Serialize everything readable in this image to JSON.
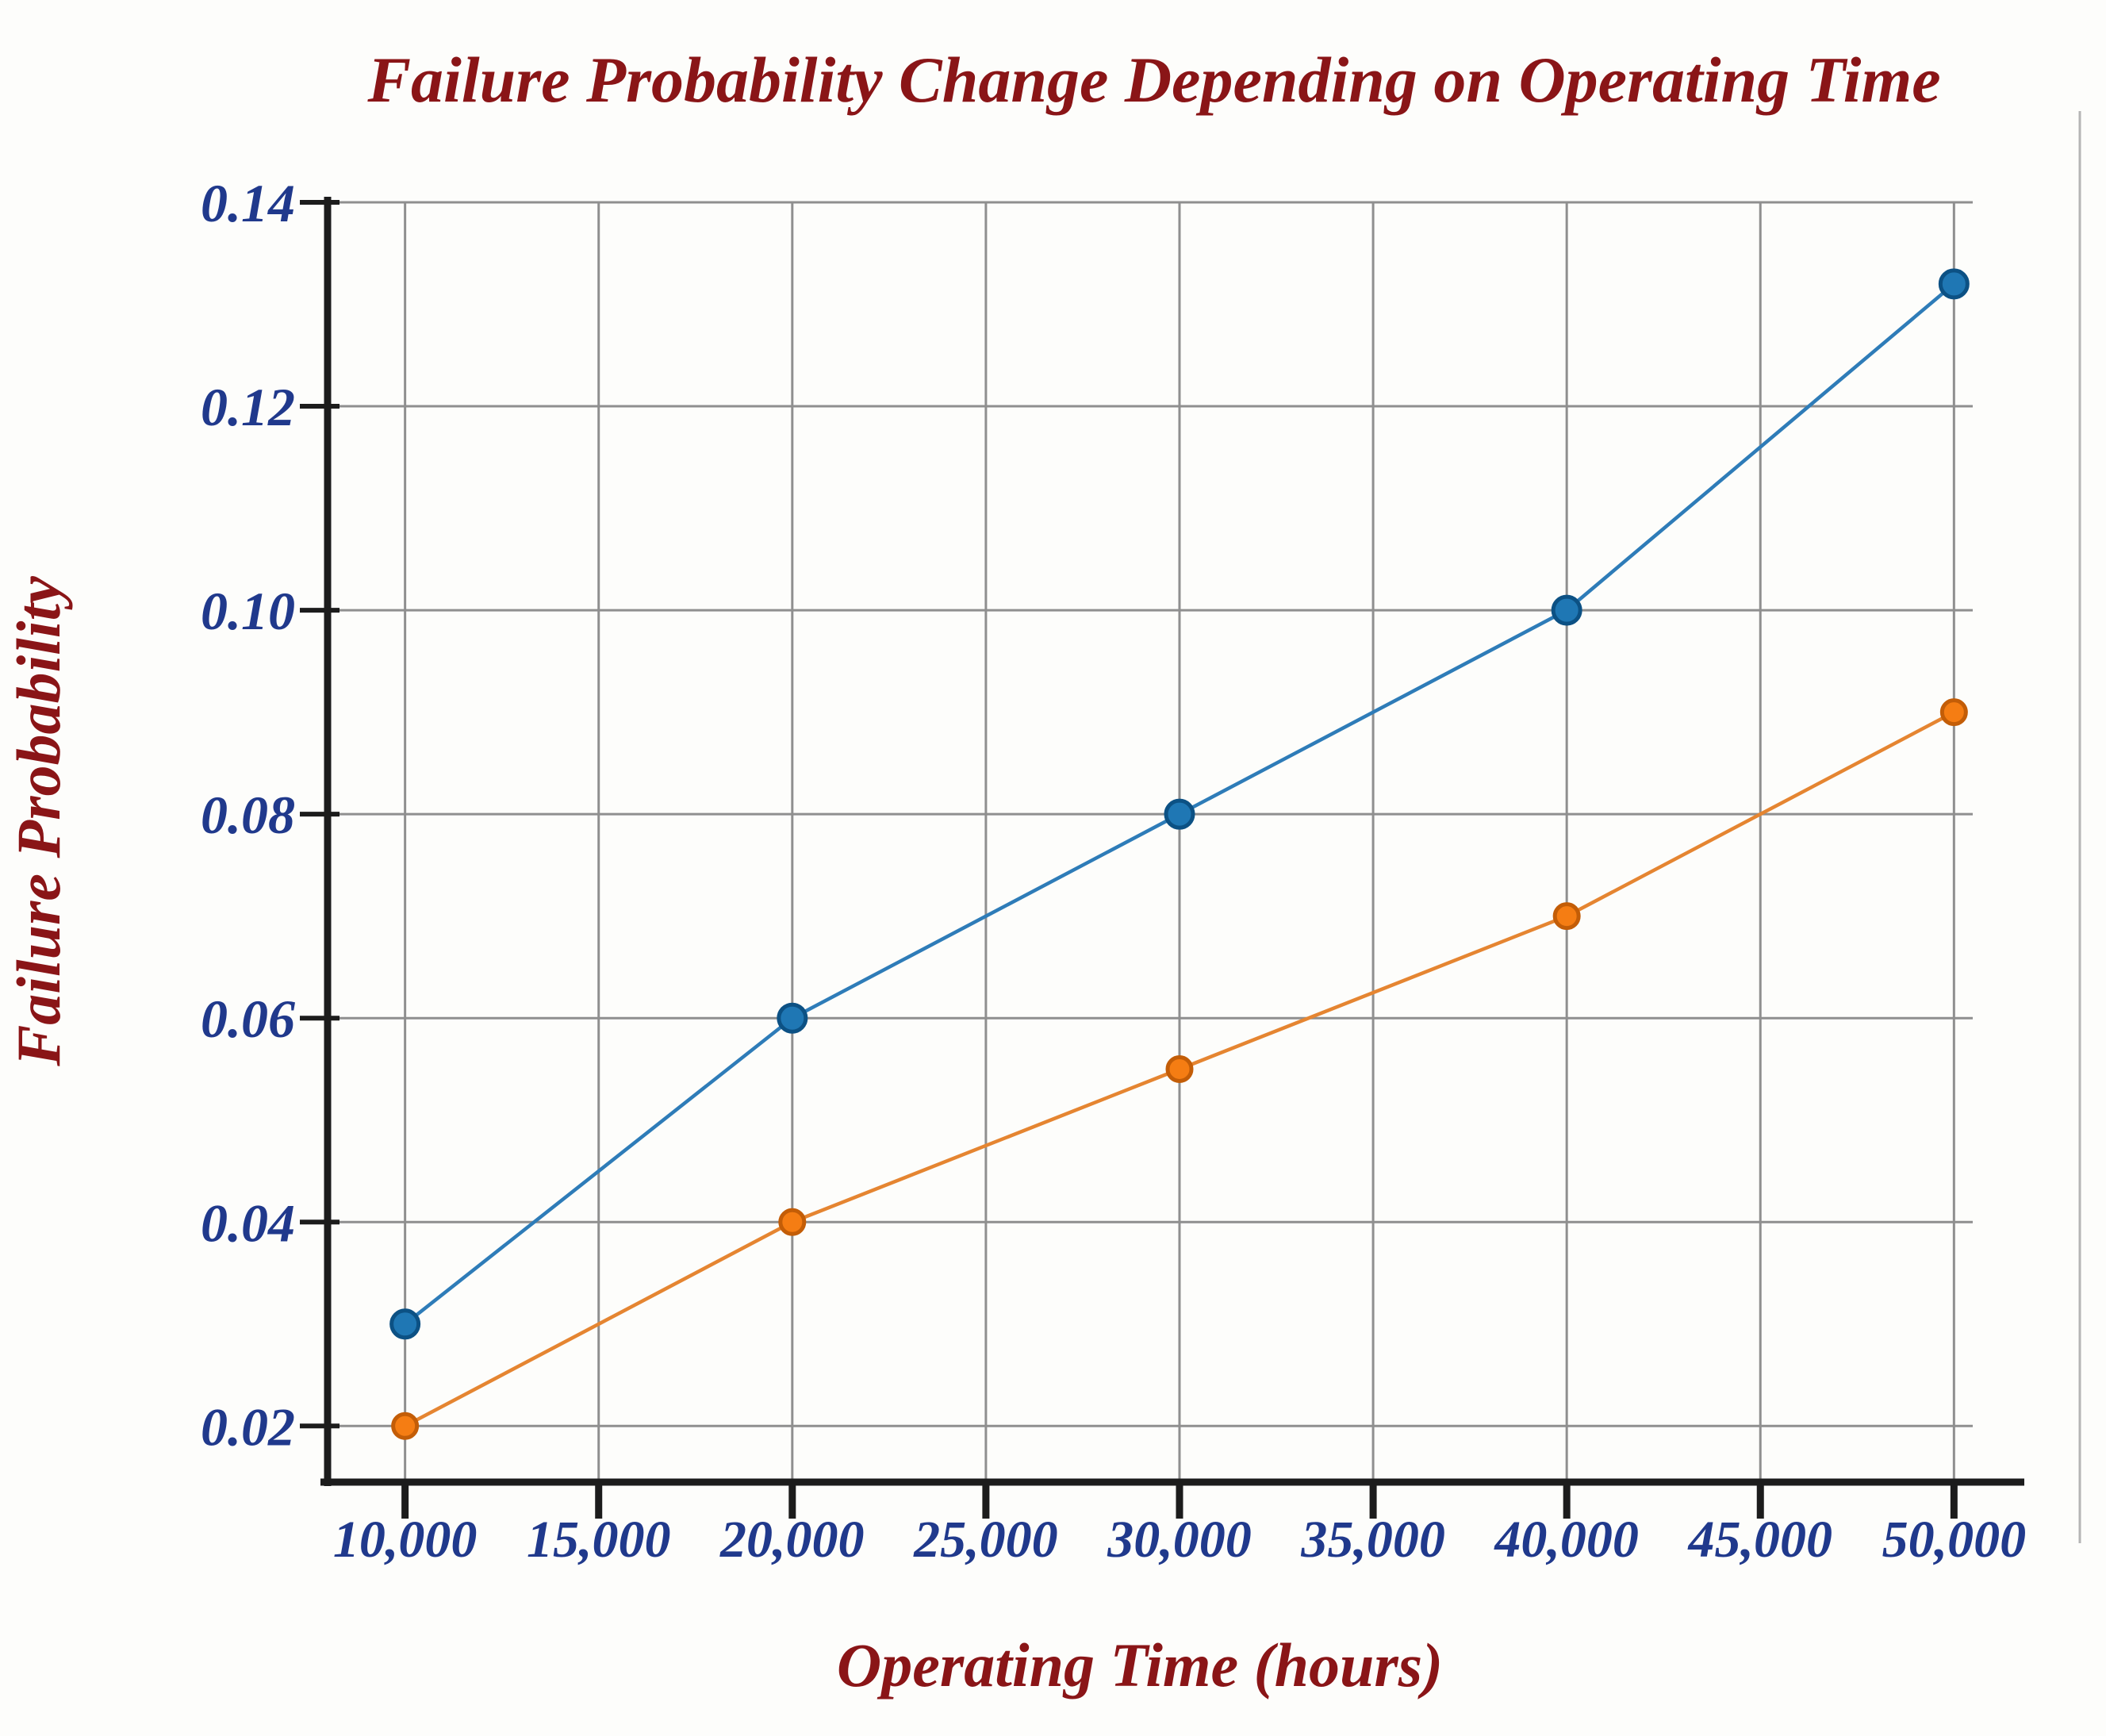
{
  "chart_data": {
    "type": "line",
    "title": "Failure Probability Change Depending on Operating Time",
    "xlabel": "Operating Time (hours)",
    "ylabel": "Failure Probability",
    "x": [
      10000,
      20000,
      30000,
      40000,
      50000
    ],
    "series": [
      {
        "name": "blue-series",
        "line_color": "#2e7cb8",
        "marker_color": "#1f77b4",
        "marker_edge_color": "#0c5184",
        "values": [
          0.03,
          0.06,
          0.08,
          0.1,
          0.132
        ]
      },
      {
        "name": "orange-series",
        "line_color": "#e58531",
        "marker_color": "#f57d13",
        "marker_edge_color": "#c35d07",
        "values": [
          0.02,
          0.04,
          0.055,
          0.07,
          0.09
        ]
      }
    ],
    "x_tick_values": [
      10000,
      15000,
      20000,
      25000,
      30000,
      35000,
      40000,
      45000,
      50000
    ],
    "x_tick_labels": [
      "10,000",
      "15,000",
      "20,000",
      "25,000",
      "30,000",
      "35,000",
      "40,000",
      "45,000",
      "50,000"
    ],
    "y_tick_values": [
      0.02,
      0.04,
      0.06,
      0.08,
      0.1,
      0.12,
      0.14
    ],
    "y_tick_labels": [
      "0.02",
      "0.04",
      "0.06",
      "0.08",
      "0.10",
      "0.12",
      "0.14"
    ],
    "xlim": [
      8000,
      53250
    ],
    "ylim": [
      0.0145,
      0.14
    ],
    "grid": true,
    "legend_position": "none"
  },
  "colors": {
    "background": "#fdfdfb",
    "title": "#8a1517",
    "axis_label": "#8a1517",
    "tick_label": "#20398c",
    "grid": "#8f8f8f",
    "axis_spine": "#1c1c1c",
    "right_spine": "#b5b5b5",
    "blue_series": "#1f77b4",
    "orange_series": "#f57d13"
  }
}
